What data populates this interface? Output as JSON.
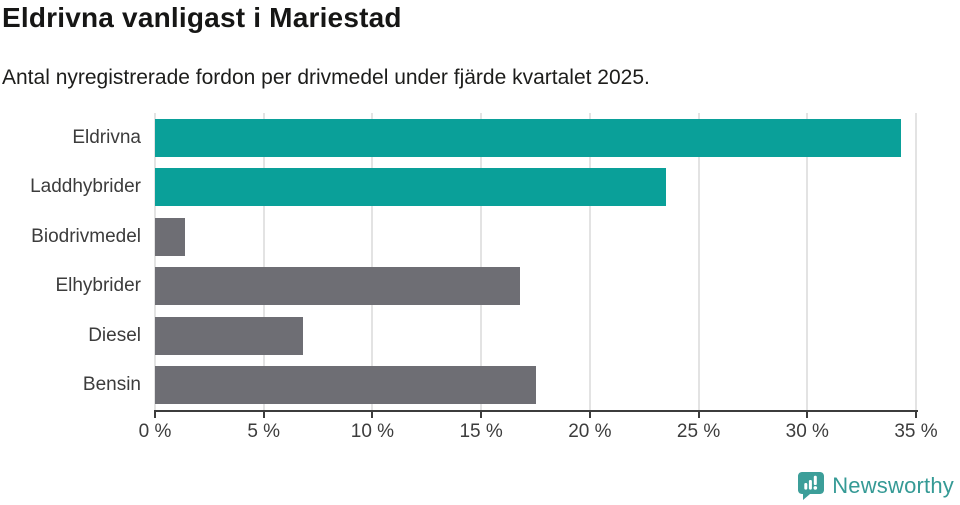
{
  "chart_data": {
    "type": "bar",
    "orientation": "horizontal",
    "title": "Eldrivna vanligast i Mariestad",
    "subtitle": "Antal nyregistrerade fordon per drivmedel under fjärde kvartalet 2025.",
    "categories": [
      "Eldrivna",
      "Laddhybrider",
      "Biodrivmedel",
      "Elhybrider",
      "Diesel",
      "Bensin"
    ],
    "values": [
      34.3,
      23.5,
      1.4,
      16.8,
      6.8,
      17.5
    ],
    "value_unit": "%",
    "xlim": [
      0,
      35
    ],
    "xticks": [
      0,
      5,
      10,
      15,
      20,
      25,
      30,
      35
    ],
    "xtick_labels": [
      "0 %",
      "5 %",
      "10 %",
      "15 %",
      "20 %",
      "25 %",
      "30 %",
      "35 %"
    ],
    "grid": true,
    "legend": "none",
    "bar_colors": [
      "#0aa099",
      "#0aa099",
      "#6e6e74",
      "#6e6e74",
      "#6e6e74",
      "#6e6e74"
    ],
    "colors": {
      "highlight": "#0aa099",
      "base": "#6e6e74",
      "axis": "#3c3c3c",
      "gridline": "#e3e3e3",
      "tick_text": "#3c3c3c"
    }
  },
  "branding": {
    "logo_text": "Newsworthy",
    "logo_text_color": "#359a95",
    "icon": "newsworthy-speech-bubble-chart-icon",
    "icon_color": "#3c9e99"
  }
}
